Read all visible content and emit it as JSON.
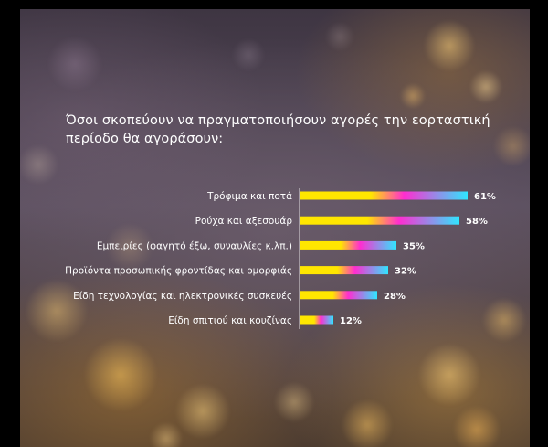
{
  "chart_data": {
    "type": "bar",
    "orientation": "horizontal",
    "title": "Όσοι σκοπεύουν να πραγματοποιήσουν αγορές την εορταστική\nπερίοδο θα αγοράσουν:",
    "categories": [
      "Τρόφιμα και ποτά",
      "Ρούχα και αξεσουάρ",
      "Εμπειρίες (φαγητό έξω, συναυλίες κ.λπ.)",
      "Προϊόντα προσωπικής φροντίδας και ομορφιάς",
      "Είδη τεχνολογίας και ηλεκτρονικές συσκευές",
      "Είδη σπιτιού και κουζίνας"
    ],
    "values": [
      61,
      58,
      35,
      32,
      28,
      12
    ],
    "value_labels": [
      "61%",
      "58%",
      "35%",
      "32%",
      "28%",
      "12%"
    ],
    "xlim": [
      0,
      100
    ],
    "grid": false,
    "bar_gradient": [
      "#ffe600",
      "#ff2dd0",
      "#2fe6ff"
    ]
  }
}
